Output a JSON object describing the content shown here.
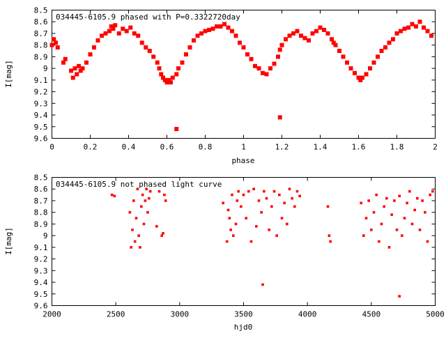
{
  "chart_data": [
    {
      "type": "scatter",
      "title": "034445-6105.9 phased with P=0.3322720day",
      "xlabel": "phase",
      "ylabel": "I[mag]",
      "xlim": [
        0,
        2
      ],
      "ylim": [
        9.6,
        8.5
      ],
      "y_inverted": true,
      "grid": false,
      "marker_color": "#ff0000",
      "xticks": [
        "0",
        "0.2",
        "0.4",
        "0.6",
        "0.8",
        "1",
        "1.2",
        "1.4",
        "1.6",
        "1.8",
        "2"
      ],
      "yticks": [
        "8.5",
        "8.6",
        "8.7",
        "8.8",
        "8.9",
        "9",
        "9.1",
        "9.2",
        "9.3",
        "9.4",
        "9.5",
        "9.6"
      ],
      "series": [
        {
          "x": [
            0.0,
            0.01,
            0.02,
            0.03,
            0.06,
            0.07,
            0.1,
            0.11,
            0.12,
            0.13,
            0.14,
            0.15,
            0.16,
            0.18,
            0.2,
            0.22,
            0.24,
            0.26,
            0.28,
            0.3,
            0.31,
            0.32,
            0.33,
            0.35,
            0.37,
            0.39,
            0.41,
            0.43,
            0.45,
            0.47,
            0.49,
            0.51,
            0.53,
            0.55,
            0.56,
            0.57,
            0.58,
            0.59,
            0.6,
            0.61,
            0.62,
            0.63,
            0.65,
            0.66,
            0.68,
            0.7,
            0.72,
            0.74,
            0.76,
            0.78,
            0.8,
            0.82,
            0.84,
            0.86,
            0.88,
            0.9,
            0.92,
            0.94,
            0.96,
            0.98,
            1.0,
            1.02,
            1.04,
            1.06,
            1.08,
            1.1,
            1.12,
            1.14,
            1.16,
            1.18,
            1.19,
            1.2,
            1.22,
            1.24,
            1.26,
            1.28,
            1.3,
            1.32,
            1.34,
            1.36,
            1.38,
            1.4,
            1.42,
            1.44,
            1.46,
            1.47,
            1.48,
            1.5,
            1.52,
            1.54,
            1.56,
            1.58,
            1.6,
            1.61,
            1.62,
            1.64,
            1.66,
            1.68,
            1.7,
            1.72,
            1.74,
            1.76,
            1.78,
            1.8,
            1.82,
            1.84,
            1.86,
            1.88,
            1.9,
            1.92,
            1.94,
            1.96,
            1.98,
            0.65,
            1.19
          ],
          "y": [
            8.8,
            8.75,
            8.78,
            8.82,
            8.95,
            8.92,
            9.02,
            9.08,
            9.0,
            9.05,
            8.98,
            9.02,
            9.0,
            8.95,
            8.88,
            8.82,
            8.76,
            8.72,
            8.7,
            8.68,
            8.64,
            8.66,
            8.63,
            8.7,
            8.66,
            8.68,
            8.65,
            8.7,
            8.72,
            8.78,
            8.82,
            8.85,
            8.9,
            8.95,
            9.0,
            9.05,
            9.08,
            9.1,
            9.12,
            9.1,
            9.12,
            9.08,
            9.05,
            9.0,
            8.95,
            8.88,
            8.82,
            8.76,
            8.72,
            8.7,
            8.68,
            8.67,
            8.66,
            8.64,
            8.64,
            8.62,
            8.65,
            8.68,
            8.72,
            8.78,
            8.82,
            8.88,
            8.92,
            8.98,
            9.0,
            9.04,
            9.05,
            9.0,
            8.96,
            8.9,
            8.84,
            8.8,
            8.75,
            8.72,
            8.7,
            8.68,
            8.72,
            8.74,
            8.76,
            8.7,
            8.68,
            8.65,
            8.67,
            8.7,
            8.75,
            8.78,
            8.8,
            8.85,
            8.9,
            8.95,
            9.0,
            9.04,
            9.08,
            9.1,
            9.08,
            9.05,
            9.0,
            8.95,
            8.9,
            8.85,
            8.82,
            8.78,
            8.75,
            8.7,
            8.68,
            8.66,
            8.65,
            8.62,
            8.64,
            8.6,
            8.65,
            8.68,
            8.72,
            9.52,
            9.42
          ]
        }
      ]
    },
    {
      "type": "scatter",
      "title": "034445-6105.9 not phased light curve",
      "xlabel": "hjd0",
      "ylabel": "I[mag]",
      "xlim": [
        2000,
        5000
      ],
      "ylim": [
        9.6,
        8.5
      ],
      "y_inverted": true,
      "grid": false,
      "marker_color": "#ff0000",
      "xticks": [
        "2000",
        "2500",
        "3000",
        "3500",
        "4000",
        "4500",
        "5000"
      ],
      "yticks": [
        "8.5",
        "8.6",
        "8.7",
        "8.8",
        "8.9",
        "9",
        "9.1",
        "9.2",
        "9.3",
        "9.4",
        "9.5",
        "9.6"
      ],
      "series": [
        {
          "x": [
            2470,
            2490,
            2610,
            2620,
            2630,
            2640,
            2650,
            2660,
            2670,
            2680,
            2690,
            2700,
            2710,
            2720,
            2730,
            2740,
            2750,
            2760,
            2770,
            2820,
            2840,
            2860,
            2870,
            2880,
            2890,
            3340,
            3370,
            3380,
            3390,
            3400,
            3410,
            3420,
            3440,
            3450,
            3460,
            3480,
            3500,
            3520,
            3540,
            3560,
            3580,
            3600,
            3620,
            3640,
            3660,
            3680,
            3700,
            3720,
            3740,
            3760,
            3780,
            3800,
            3820,
            3840,
            3860,
            3880,
            3900,
            3920,
            3940,
            4160,
            4170,
            4180,
            4420,
            4440,
            4460,
            4480,
            4500,
            4520,
            4540,
            4560,
            4580,
            4600,
            4620,
            4640,
            4660,
            4680,
            4700,
            4720,
            4740,
            4760,
            4780,
            4800,
            4820,
            4840,
            4860,
            4880,
            4900,
            4920,
            4940,
            4960,
            4980,
            3650,
            4720
          ],
          "y": [
            8.65,
            8.66,
            8.8,
            9.1,
            8.95,
            8.7,
            9.05,
            8.85,
            8.6,
            9.0,
            9.1,
            8.75,
            8.65,
            8.9,
            8.7,
            8.6,
            8.8,
            8.68,
            8.62,
            8.92,
            8.62,
            9.0,
            8.98,
            8.65,
            8.7,
            8.72,
            9.05,
            8.78,
            8.85,
            8.95,
            8.65,
            9.0,
            8.9,
            8.7,
            8.62,
            8.75,
            8.65,
            8.85,
            8.62,
            9.05,
            8.6,
            8.92,
            8.7,
            8.8,
            8.62,
            8.68,
            8.95,
            8.75,
            8.62,
            9.0,
            8.65,
            8.85,
            8.72,
            8.9,
            8.6,
            8.68,
            8.75,
            8.62,
            8.66,
            8.75,
            9.0,
            9.05,
            8.72,
            9.0,
            8.85,
            8.7,
            8.95,
            8.8,
            8.65,
            9.05,
            8.9,
            8.75,
            8.68,
            9.1,
            8.82,
            8.7,
            8.95,
            8.66,
            9.0,
            8.85,
            8.72,
            8.62,
            8.9,
            8.78,
            8.68,
            8.95,
            8.7,
            8.8,
            9.05,
            8.65,
            8.62,
            9.42,
            9.52
          ]
        }
      ]
    }
  ]
}
